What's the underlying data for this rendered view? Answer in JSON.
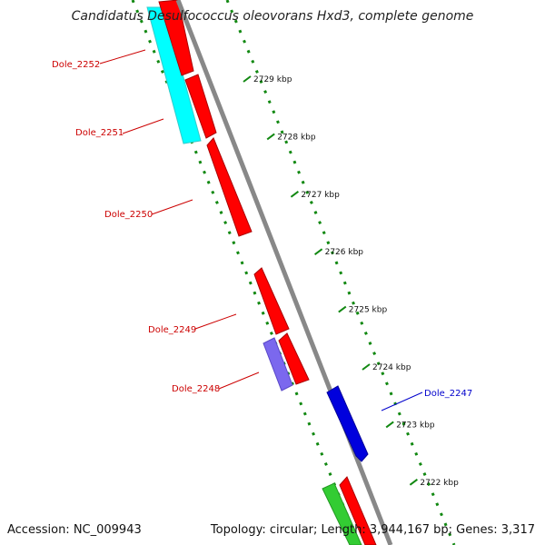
{
  "header": {
    "title": "Candidatus Desulfococcus oleovorans Hxd3, complete genome"
  },
  "footer": {
    "accession": "Accession: NC_009943",
    "topology": "Topology: circular; Length: 3,944,167 bp; Genes: 3,317"
  },
  "ticks": [
    "2729 kbp",
    "2728 kbp",
    "2727 kbp",
    "2726 kbp",
    "2725 kbp",
    "2724 kbp",
    "2723 kbp",
    "2722 kbp"
  ],
  "genes": [
    {
      "label": "Dole_2252",
      "color": "#cc0000"
    },
    {
      "label": "Dole_2251",
      "color": "#cc0000"
    },
    {
      "label": "Dole_2250",
      "color": "#cc0000"
    },
    {
      "label": "Dole_2249",
      "color": "#cc0000"
    },
    {
      "label": "Dole_2248",
      "color": "#cc0000"
    },
    {
      "label": "Dole_2247",
      "color": "#0000cc"
    }
  ],
  "colors": {
    "cds_red": "#ff0000",
    "cds_cyan": "#00ffff",
    "cds_purple": "#7b68ee",
    "cds_blue": "#0000dd",
    "cds_green": "#33cc33",
    "dotted_track": "#118811",
    "backbone": "#888888"
  }
}
